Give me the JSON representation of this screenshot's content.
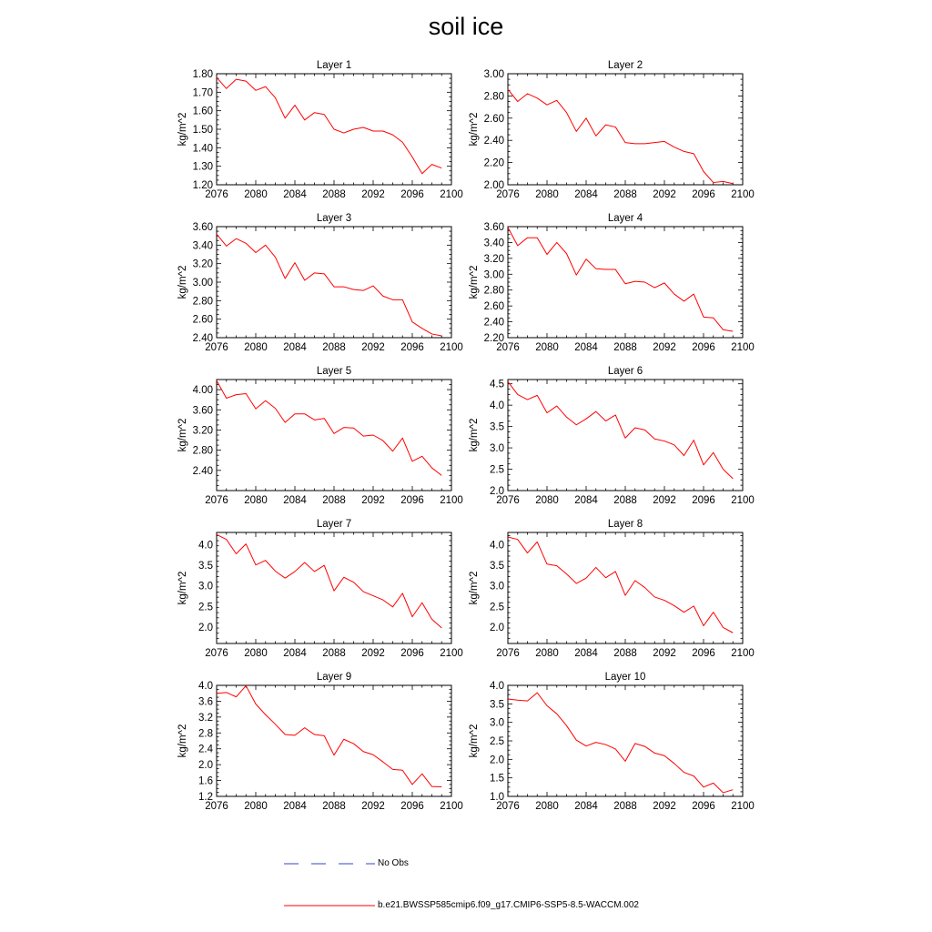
{
  "title": "soil ice",
  "colors": {
    "model_line": "#ff0000",
    "obs_line": "#3344cc",
    "axis": "#000000"
  },
  "legend": [
    {
      "label": "No Obs",
      "style": "dashed",
      "color": "#3344cc"
    },
    {
      "label": "b.e21.BWSSP585cmip6.f09_g17.CMIP6-SSP5-8.5-WACCM.002",
      "style": "solid",
      "color": "#ff0000"
    }
  ],
  "chart_data": [
    {
      "type": "line",
      "title": "Layer 1",
      "ylabel": "kg/m^2",
      "xlim": [
        2076,
        2100
      ],
      "xticks": [
        2076,
        2080,
        2084,
        2088,
        2092,
        2096,
        2100
      ],
      "ylim": [
        1.2,
        1.8
      ],
      "yticks": [
        1.2,
        1.3,
        1.4,
        1.5,
        1.6,
        1.7,
        1.8
      ],
      "ydecimals": 2,
      "x": [
        2076,
        2077,
        2078,
        2079,
        2080,
        2081,
        2082,
        2083,
        2084,
        2085,
        2086,
        2087,
        2088,
        2089,
        2090,
        2091,
        2092,
        2093,
        2094,
        2095,
        2096,
        2097,
        2098,
        2099
      ],
      "series": [
        {
          "values": [
            1.78,
            1.72,
            1.77,
            1.76,
            1.71,
            1.73,
            1.67,
            1.56,
            1.63,
            1.55,
            1.59,
            1.58,
            1.5,
            1.48,
            1.5,
            1.51,
            1.49,
            1.49,
            1.47,
            1.43,
            1.35,
            1.26,
            1.31,
            1.29
          ]
        }
      ]
    },
    {
      "type": "line",
      "title": "Layer 2",
      "ylabel": "kg/m^2",
      "xlim": [
        2076,
        2100
      ],
      "xticks": [
        2076,
        2080,
        2084,
        2088,
        2092,
        2096,
        2100
      ],
      "ylim": [
        2.0,
        3.0
      ],
      "yticks": [
        2.0,
        2.2,
        2.4,
        2.6,
        2.8,
        3.0
      ],
      "ydecimals": 2,
      "x": [
        2076,
        2077,
        2078,
        2079,
        2080,
        2081,
        2082,
        2083,
        2084,
        2085,
        2086,
        2087,
        2088,
        2089,
        2090,
        2091,
        2092,
        2093,
        2094,
        2095,
        2096,
        2097,
        2098,
        2099
      ],
      "series": [
        {
          "values": [
            2.86,
            2.75,
            2.82,
            2.78,
            2.72,
            2.76,
            2.65,
            2.48,
            2.6,
            2.44,
            2.54,
            2.52,
            2.38,
            2.37,
            2.37,
            2.38,
            2.39,
            2.34,
            2.3,
            2.28,
            2.12,
            2.02,
            2.03,
            2.01
          ]
        }
      ]
    },
    {
      "type": "line",
      "title": "Layer 3",
      "ylabel": "kg/m^2",
      "xlim": [
        2076,
        2100
      ],
      "xticks": [
        2076,
        2080,
        2084,
        2088,
        2092,
        2096,
        2100
      ],
      "ylim": [
        2.4,
        3.6
      ],
      "yticks": [
        2.4,
        2.6,
        2.8,
        3.0,
        3.2,
        3.4,
        3.6
      ],
      "ydecimals": 2,
      "x": [
        2076,
        2077,
        2078,
        2079,
        2080,
        2081,
        2082,
        2083,
        2084,
        2085,
        2086,
        2087,
        2088,
        2089,
        2090,
        2091,
        2092,
        2093,
        2094,
        2095,
        2096,
        2097,
        2098,
        2099
      ],
      "series": [
        {
          "values": [
            3.52,
            3.39,
            3.47,
            3.42,
            3.32,
            3.4,
            3.27,
            3.04,
            3.21,
            3.02,
            3.1,
            3.09,
            2.95,
            2.95,
            2.92,
            2.91,
            2.96,
            2.85,
            2.81,
            2.81,
            2.57,
            2.5,
            2.44,
            2.42
          ]
        }
      ]
    },
    {
      "type": "line",
      "title": "Layer 4",
      "ylabel": "kg/m^2",
      "xlim": [
        2076,
        2100
      ],
      "xticks": [
        2076,
        2080,
        2084,
        2088,
        2092,
        2096,
        2100
      ],
      "ylim": [
        2.2,
        3.6
      ],
      "yticks": [
        2.2,
        2.4,
        2.6,
        2.8,
        3.0,
        3.2,
        3.4,
        3.6
      ],
      "ydecimals": 2,
      "x": [
        2076,
        2077,
        2078,
        2079,
        2080,
        2081,
        2082,
        2083,
        2084,
        2085,
        2086,
        2087,
        2088,
        2089,
        2090,
        2091,
        2092,
        2093,
        2094,
        2095,
        2096,
        2097,
        2098,
        2099
      ],
      "series": [
        {
          "values": [
            3.59,
            3.36,
            3.46,
            3.46,
            3.25,
            3.4,
            3.26,
            2.99,
            3.19,
            3.07,
            3.06,
            3.06,
            2.88,
            2.91,
            2.9,
            2.83,
            2.89,
            2.75,
            2.66,
            2.75,
            2.46,
            2.45,
            2.3,
            2.28
          ]
        }
      ]
    },
    {
      "type": "line",
      "title": "Layer 5",
      "ylabel": "kg/m^2",
      "xlim": [
        2076,
        2100
      ],
      "xticks": [
        2076,
        2080,
        2084,
        2088,
        2092,
        2096,
        2100
      ],
      "ylim": [
        2.0,
        4.2
      ],
      "yticks": [
        2.4,
        2.8,
        3.2,
        3.6,
        4.0
      ],
      "ydecimals": 2,
      "x": [
        2076,
        2077,
        2078,
        2079,
        2080,
        2081,
        2082,
        2083,
        2084,
        2085,
        2086,
        2087,
        2088,
        2089,
        2090,
        2091,
        2092,
        2093,
        2094,
        2095,
        2096,
        2097,
        2098,
        2099
      ],
      "series": [
        {
          "values": [
            4.18,
            3.83,
            3.9,
            3.92,
            3.62,
            3.78,
            3.63,
            3.35,
            3.52,
            3.52,
            3.4,
            3.43,
            3.13,
            3.25,
            3.24,
            3.08,
            3.1,
            2.99,
            2.78,
            3.04,
            2.58,
            2.68,
            2.45,
            2.3
          ]
        }
      ]
    },
    {
      "type": "line",
      "title": "Layer 6",
      "ylabel": "kg/m^2",
      "xlim": [
        2076,
        2100
      ],
      "xticks": [
        2076,
        2080,
        2084,
        2088,
        2092,
        2096,
        2100
      ],
      "ylim": [
        2.0,
        4.6
      ],
      "yticks": [
        2.0,
        2.5,
        3.0,
        3.5,
        4.0,
        4.5
      ],
      "ydecimals": 1,
      "x": [
        2076,
        2077,
        2078,
        2079,
        2080,
        2081,
        2082,
        2083,
        2084,
        2085,
        2086,
        2087,
        2088,
        2089,
        2090,
        2091,
        2092,
        2093,
        2094,
        2095,
        2096,
        2097,
        2098,
        2099
      ],
      "series": [
        {
          "values": [
            4.55,
            4.25,
            4.13,
            4.23,
            3.82,
            3.98,
            3.72,
            3.54,
            3.68,
            3.85,
            3.63,
            3.77,
            3.23,
            3.47,
            3.42,
            3.21,
            3.16,
            3.07,
            2.82,
            3.18,
            2.6,
            2.89,
            2.5,
            2.28
          ]
        }
      ]
    },
    {
      "type": "line",
      "title": "Layer 7",
      "ylabel": "kg/m^2",
      "xlim": [
        2076,
        2100
      ],
      "xticks": [
        2076,
        2080,
        2084,
        2088,
        2092,
        2096,
        2100
      ],
      "ylim": [
        1.6,
        4.3
      ],
      "yticks": [
        2.0,
        2.5,
        3.0,
        3.5,
        4.0
      ],
      "ydecimals": 1,
      "x": [
        2076,
        2077,
        2078,
        2079,
        2080,
        2081,
        2082,
        2083,
        2084,
        2085,
        2086,
        2087,
        2088,
        2089,
        2090,
        2091,
        2092,
        2093,
        2094,
        2095,
        2096,
        2097,
        2098,
        2099
      ],
      "series": [
        {
          "values": [
            4.25,
            4.13,
            3.78,
            4.02,
            3.51,
            3.62,
            3.36,
            3.19,
            3.35,
            3.57,
            3.35,
            3.5,
            2.88,
            3.21,
            3.09,
            2.86,
            2.76,
            2.66,
            2.49,
            2.82,
            2.25,
            2.59,
            2.19,
            1.98
          ]
        }
      ]
    },
    {
      "type": "line",
      "title": "Layer 8",
      "ylabel": "kg/m^2",
      "xlim": [
        2076,
        2100
      ],
      "xticks": [
        2076,
        2080,
        2084,
        2088,
        2092,
        2096,
        2100
      ],
      "ylim": [
        1.6,
        4.3
      ],
      "yticks": [
        2.0,
        2.5,
        3.0,
        3.5,
        4.0
      ],
      "ydecimals": 1,
      "x": [
        2076,
        2077,
        2078,
        2079,
        2080,
        2081,
        2082,
        2083,
        2084,
        2085,
        2086,
        2087,
        2088,
        2089,
        2090,
        2091,
        2092,
        2093,
        2094,
        2095,
        2096,
        2097,
        2098,
        2099
      ],
      "series": [
        {
          "values": [
            4.19,
            4.13,
            3.8,
            4.07,
            3.53,
            3.49,
            3.29,
            3.06,
            3.19,
            3.45,
            3.2,
            3.35,
            2.77,
            3.13,
            2.96,
            2.73,
            2.65,
            2.52,
            2.36,
            2.51,
            2.03,
            2.36,
            1.99,
            1.86
          ]
        }
      ]
    },
    {
      "type": "line",
      "title": "Layer 9",
      "ylabel": "kg/m^2",
      "xlim": [
        2076,
        2100
      ],
      "xticks": [
        2076,
        2080,
        2084,
        2088,
        2092,
        2096,
        2100
      ],
      "ylim": [
        1.2,
        4.0
      ],
      "yticks": [
        1.2,
        1.6,
        2.0,
        2.4,
        2.8,
        3.2,
        3.6,
        4.0
      ],
      "ydecimals": 1,
      "x": [
        2076,
        2077,
        2078,
        2079,
        2080,
        2081,
        2082,
        2083,
        2084,
        2085,
        2086,
        2087,
        2088,
        2089,
        2090,
        2091,
        2092,
        2093,
        2094,
        2095,
        2096,
        2097,
        2098,
        2099
      ],
      "series": [
        {
          "values": [
            3.8,
            3.82,
            3.71,
            3.99,
            3.53,
            3.26,
            3.02,
            2.76,
            2.74,
            2.93,
            2.76,
            2.73,
            2.24,
            2.64,
            2.53,
            2.33,
            2.25,
            2.07,
            1.88,
            1.86,
            1.5,
            1.77,
            1.45,
            1.44
          ]
        }
      ]
    },
    {
      "type": "line",
      "title": "Layer 10",
      "ylabel": "kg/m^2",
      "xlim": [
        2076,
        2100
      ],
      "xticks": [
        2076,
        2080,
        2084,
        2088,
        2092,
        2096,
        2100
      ],
      "ylim": [
        1.0,
        4.0
      ],
      "yticks": [
        1.0,
        1.5,
        2.0,
        2.5,
        3.0,
        3.5,
        4.0
      ],
      "ydecimals": 1,
      "x": [
        2076,
        2077,
        2078,
        2079,
        2080,
        2081,
        2082,
        2083,
        2084,
        2085,
        2086,
        2087,
        2088,
        2089,
        2090,
        2091,
        2092,
        2093,
        2094,
        2095,
        2096,
        2097,
        2098,
        2099
      ],
      "series": [
        {
          "values": [
            3.63,
            3.6,
            3.58,
            3.8,
            3.45,
            3.23,
            2.91,
            2.52,
            2.36,
            2.46,
            2.4,
            2.28,
            1.95,
            2.43,
            2.35,
            2.17,
            2.1,
            1.89,
            1.65,
            1.55,
            1.25,
            1.36,
            1.1,
            1.18
          ]
        }
      ]
    }
  ]
}
